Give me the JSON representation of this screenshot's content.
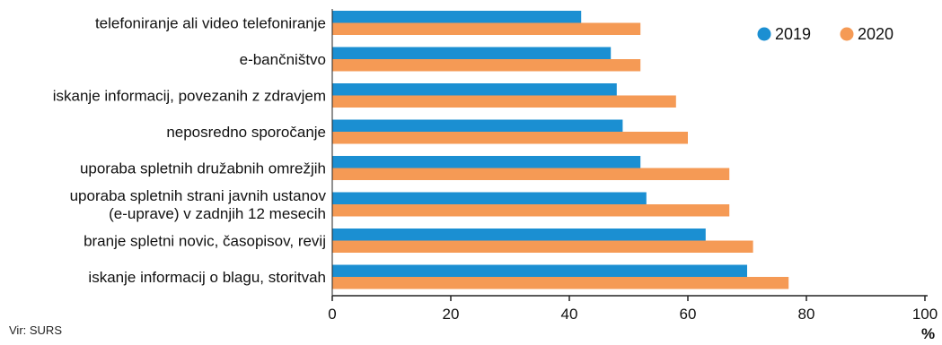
{
  "source": "Vir: SURS",
  "chart_data": {
    "type": "bar",
    "orientation": "horizontal",
    "categories": [
      [
        "telefoniranje ali video telefoniranje"
      ],
      [
        "e-bančništvo"
      ],
      [
        "iskanje informacij, povezanih z zdravjem"
      ],
      [
        "neposredno sporočanje"
      ],
      [
        "uporaba spletnih družabnih omrežjih"
      ],
      [
        "uporaba spletnih strani javnih ustanov",
        "(e-uprave) v zadnjih 12 mesecih"
      ],
      [
        "branje spletni novic, časopisov, revij"
      ],
      [
        "iskanje informacij o blagu, storitvah"
      ]
    ],
    "series": [
      {
        "name": "2019",
        "color": "#1b8fd2",
        "values": [
          42,
          47,
          48,
          49,
          52,
          53,
          63,
          70
        ]
      },
      {
        "name": "2020",
        "color": "#f59a55",
        "values": [
          52,
          52,
          58,
          60,
          67,
          67,
          71,
          77
        ]
      }
    ],
    "xlim": [
      0,
      100
    ],
    "xticks": [
      "0",
      "20",
      "40",
      "60",
      "80",
      "100"
    ],
    "xunit": "%",
    "legend": "top-right",
    "grid": false
  }
}
